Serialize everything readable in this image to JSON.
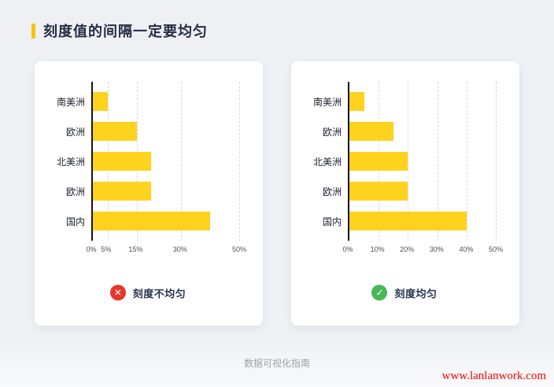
{
  "page": {
    "title": "刻度值的间隔一定要均匀",
    "footer": "数据可视化指南",
    "watermark": "www.lanlanwork.com"
  },
  "colors": {
    "background": "#eef0f4",
    "card": "#ffffff",
    "bar": "#ffd21e",
    "accent": "#f5c400",
    "title_text": "#242e42",
    "bad_badge": "#e8352a",
    "good_badge": "#47b757",
    "gridline": "#d6d8db",
    "axis": "#141414"
  },
  "badges": {
    "bad": {
      "icon": "x-circle-icon",
      "glyph": "✕",
      "label": "刻度不均匀"
    },
    "good": {
      "icon": "check-circle-icon",
      "glyph": "✓",
      "label": "刻度均匀"
    }
  },
  "chart_data": [
    {
      "type": "bar",
      "orientation": "horizontal",
      "title": "刻度不均匀",
      "categories": [
        "南美洲",
        "欧洲",
        "北美洲",
        "欧洲",
        "国内"
      ],
      "values": [
        5,
        15,
        20,
        20,
        40
      ],
      "unit": "%",
      "xlim": [
        0,
        50
      ],
      "ticks": [
        0,
        5,
        15,
        30,
        50
      ],
      "tick_labels": [
        "0%",
        "5%",
        "15%",
        "30%",
        "50%"
      ],
      "tick_spacing": "non-uniform",
      "grid": "dashed-vertical",
      "bar_color": "#ffd21e"
    },
    {
      "type": "bar",
      "orientation": "horizontal",
      "title": "刻度均匀",
      "categories": [
        "南美洲",
        "欧洲",
        "北美洲",
        "欧洲",
        "国内"
      ],
      "values": [
        5,
        15,
        20,
        20,
        40
      ],
      "unit": "%",
      "xlim": [
        0,
        50
      ],
      "ticks": [
        0,
        10,
        20,
        30,
        40,
        50
      ],
      "tick_labels": [
        "0%",
        "10%",
        "20%",
        "30%",
        "40%",
        "50%"
      ],
      "tick_spacing": "uniform",
      "grid": "dashed-vertical",
      "bar_color": "#ffd21e"
    }
  ]
}
